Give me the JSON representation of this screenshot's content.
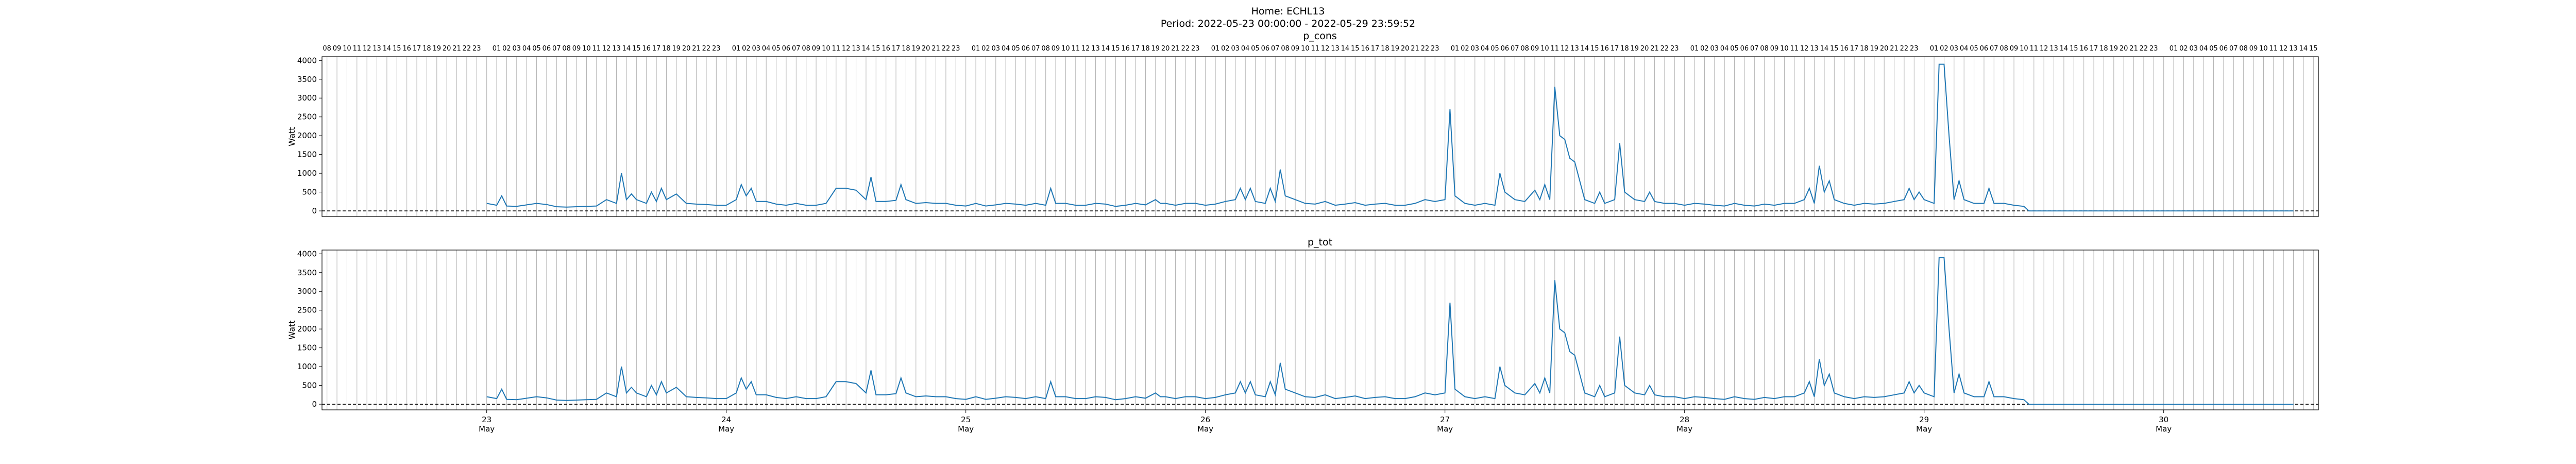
{
  "figure": {
    "title_line1": "Home: ECHL13",
    "title_line2": "Period: 2022-05-23 00:00:00 - 2022-05-29 23:59:52"
  },
  "colors": {
    "line": "#1f77b4",
    "grid": "#b0b0b0",
    "zero": "#000000"
  },
  "hour_labels": [
    "01",
    "02",
    "03",
    "04",
    "05",
    "06",
    "07",
    "08",
    "09",
    "10",
    "11",
    "12",
    "13",
    "14",
    "15",
    "16",
    "17",
    "18",
    "19",
    "20",
    "21",
    "22",
    "23"
  ],
  "day_labels": [
    "23",
    "24",
    "25",
    "26",
    "27",
    "28",
    "29",
    "30"
  ],
  "month_label": "May",
  "chart_data": [
    {
      "type": "line",
      "title": "p_cons",
      "ylabel": "Watt",
      "xlabel": "",
      "x_unit": "hours from 2022-05-23 00:00",
      "xlim": [
        -16.5,
        183.5
      ],
      "ylim": [
        -150,
        4100
      ],
      "yticks": [
        0,
        500,
        1000,
        1500,
        2000,
        2500,
        3000,
        3500,
        4000
      ],
      "grid": "vertical hourly",
      "zero_line": "dashed",
      "series": [
        {
          "values_ref": "power"
        }
      ]
    },
    {
      "type": "line",
      "title": "p_tot",
      "ylabel": "Watt",
      "xlabel": "",
      "x_unit": "hours from 2022-05-23 00:00",
      "xlim": [
        -16.5,
        183.5
      ],
      "ylim": [
        -150,
        4100
      ],
      "yticks": [
        0,
        500,
        1000,
        1500,
        2000,
        2500,
        3000,
        3500,
        4000
      ],
      "grid": "vertical hourly",
      "zero_line": "dashed",
      "series": [
        {
          "values_ref": "power"
        }
      ]
    }
  ],
  "power": [
    [
      0,
      200
    ],
    [
      1,
      150
    ],
    [
      1.5,
      400
    ],
    [
      2,
      130
    ],
    [
      3,
      120
    ],
    [
      4,
      160
    ],
    [
      5,
      200
    ],
    [
      6,
      170
    ],
    [
      7,
      110
    ],
    [
      8,
      100
    ],
    [
      9,
      110
    ],
    [
      10,
      120
    ],
    [
      11,
      130
    ],
    [
      12,
      300
    ],
    [
      13,
      200
    ],
    [
      13.5,
      1000
    ],
    [
      14,
      300
    ],
    [
      14.5,
      450
    ],
    [
      15,
      300
    ],
    [
      16,
      200
    ],
    [
      16.5,
      500
    ],
    [
      17,
      250
    ],
    [
      17.5,
      600
    ],
    [
      18,
      300
    ],
    [
      19,
      450
    ],
    [
      20,
      200
    ],
    [
      21,
      180
    ],
    [
      22,
      170
    ],
    [
      23,
      150
    ],
    [
      24,
      150
    ],
    [
      25,
      300
    ],
    [
      25.5,
      700
    ],
    [
      26,
      400
    ],
    [
      26.5,
      600
    ],
    [
      27,
      250
    ],
    [
      28,
      250
    ],
    [
      29,
      180
    ],
    [
      30,
      150
    ],
    [
      31,
      200
    ],
    [
      32,
      150
    ],
    [
      33,
      150
    ],
    [
      34,
      200
    ],
    [
      35,
      600
    ],
    [
      36,
      600
    ],
    [
      37,
      550
    ],
    [
      38,
      300
    ],
    [
      38.5,
      900
    ],
    [
      39,
      250
    ],
    [
      40,
      250
    ],
    [
      41,
      280
    ],
    [
      41.5,
      700
    ],
    [
      42,
      300
    ],
    [
      43,
      200
    ],
    [
      44,
      220
    ],
    [
      45,
      200
    ],
    [
      46,
      200
    ],
    [
      47,
      150
    ],
    [
      48,
      130
    ],
    [
      49,
      200
    ],
    [
      50,
      130
    ],
    [
      51,
      160
    ],
    [
      52,
      200
    ],
    [
      53,
      180
    ],
    [
      54,
      150
    ],
    [
      55,
      200
    ],
    [
      56,
      150
    ],
    [
      56.5,
      600
    ],
    [
      57,
      200
    ],
    [
      58,
      200
    ],
    [
      59,
      150
    ],
    [
      60,
      150
    ],
    [
      61,
      200
    ],
    [
      62,
      180
    ],
    [
      63,
      120
    ],
    [
      64,
      150
    ],
    [
      65,
      200
    ],
    [
      66,
      160
    ],
    [
      67,
      300
    ],
    [
      67.5,
      200
    ],
    [
      68,
      200
    ],
    [
      69,
      150
    ],
    [
      70,
      200
    ],
    [
      71,
      200
    ],
    [
      72,
      150
    ],
    [
      73,
      180
    ],
    [
      74,
      250
    ],
    [
      75,
      300
    ],
    [
      75.5,
      600
    ],
    [
      76,
      300
    ],
    [
      76.5,
      600
    ],
    [
      77,
      250
    ],
    [
      78,
      200
    ],
    [
      78.5,
      600
    ],
    [
      79,
      250
    ],
    [
      79.5,
      1100
    ],
    [
      80,
      400
    ],
    [
      81,
      300
    ],
    [
      82,
      200
    ],
    [
      83,
      180
    ],
    [
      84,
      250
    ],
    [
      85,
      150
    ],
    [
      86,
      180
    ],
    [
      87,
      220
    ],
    [
      88,
      150
    ],
    [
      89,
      180
    ],
    [
      90,
      200
    ],
    [
      91,
      150
    ],
    [
      92,
      150
    ],
    [
      93,
      200
    ],
    [
      94,
      300
    ],
    [
      95,
      250
    ],
    [
      96,
      300
    ],
    [
      96.5,
      2700
    ],
    [
      97,
      400
    ],
    [
      98,
      200
    ],
    [
      99,
      150
    ],
    [
      100,
      200
    ],
    [
      101,
      150
    ],
    [
      101.5,
      1000
    ],
    [
      102,
      500
    ],
    [
      103,
      300
    ],
    [
      104,
      250
    ],
    [
      105,
      550
    ],
    [
      105.5,
      300
    ],
    [
      106,
      700
    ],
    [
      106.5,
      300
    ],
    [
      107,
      3300
    ],
    [
      107.5,
      2000
    ],
    [
      108,
      1900
    ],
    [
      108.5,
      1400
    ],
    [
      109,
      1300
    ],
    [
      110,
      300
    ],
    [
      111,
      200
    ],
    [
      111.5,
      500
    ],
    [
      112,
      200
    ],
    [
      113,
      300
    ],
    [
      113.5,
      1800
    ],
    [
      114,
      500
    ],
    [
      115,
      300
    ],
    [
      116,
      250
    ],
    [
      116.5,
      500
    ],
    [
      117,
      250
    ],
    [
      118,
      200
    ],
    [
      119,
      200
    ],
    [
      120,
      150
    ],
    [
      121,
      200
    ],
    [
      122,
      180
    ],
    [
      123,
      150
    ],
    [
      124,
      130
    ],
    [
      125,
      200
    ],
    [
      126,
      150
    ],
    [
      127,
      130
    ],
    [
      128,
      180
    ],
    [
      129,
      150
    ],
    [
      130,
      200
    ],
    [
      131,
      200
    ],
    [
      132,
      300
    ],
    [
      132.5,
      600
    ],
    [
      133,
      200
    ],
    [
      133.5,
      1200
    ],
    [
      134,
      500
    ],
    [
      134.5,
      800
    ],
    [
      135,
      300
    ],
    [
      136,
      200
    ],
    [
      137,
      150
    ],
    [
      138,
      200
    ],
    [
      139,
      180
    ],
    [
      140,
      200
    ],
    [
      141,
      250
    ],
    [
      142,
      300
    ],
    [
      142.5,
      600
    ],
    [
      143,
      300
    ],
    [
      143.5,
      500
    ],
    [
      144,
      300
    ],
    [
      145,
      200
    ],
    [
      145.5,
      3900
    ],
    [
      146,
      3900
    ],
    [
      146.5,
      2000
    ],
    [
      147,
      300
    ],
    [
      147.5,
      800
    ],
    [
      148,
      300
    ],
    [
      149,
      200
    ],
    [
      150,
      200
    ],
    [
      150.5,
      600
    ],
    [
      151,
      200
    ],
    [
      152,
      200
    ],
    [
      153,
      150
    ],
    [
      154,
      120
    ],
    [
      154.5,
      0
    ],
    [
      163,
      0
    ],
    [
      172,
      0
    ],
    [
      181,
      0
    ]
  ]
}
